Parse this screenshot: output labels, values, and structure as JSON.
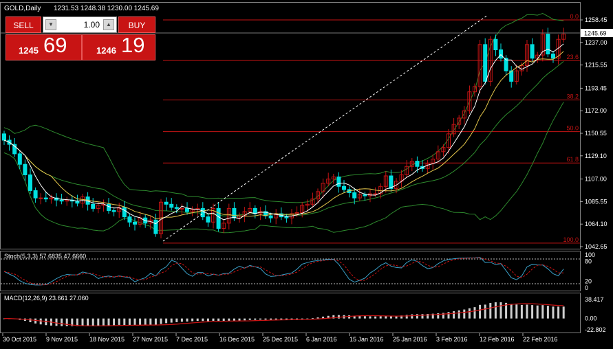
{
  "header": {
    "symbol_period": "GOLD,Daily",
    "ohlc": "1231.53 1248.38 1230.00 1245.69"
  },
  "trade_panel": {
    "sell_label": "SELL",
    "buy_label": "BUY",
    "lot_value": "1.00",
    "bid_small": "1245",
    "bid_big": "69",
    "ask_small": "1246",
    "ask_big": "19"
  },
  "price_axis": {
    "ticks": [
      "1258.45",
      "1237.00",
      "1215.55",
      "1193.45",
      "1172.00",
      "1150.55",
      "1129.10",
      "1107.00",
      "1085.55",
      "1064.10",
      "1042.65"
    ],
    "current_price": "1245.69"
  },
  "fibonacci": {
    "levels": [
      {
        "label": "0.0",
        "price": 1258.45
      },
      {
        "label": "23.6",
        "price": 1219.9
      },
      {
        "label": "38.2",
        "price": 1182.3
      },
      {
        "label": "50.0",
        "price": 1152.1
      },
      {
        "label": "61.8",
        "price": 1122.3
      },
      {
        "label": "100.0",
        "price": 1046.0
      }
    ]
  },
  "stochastic": {
    "label": "Stoch(5,3,3) 57.6835 47.6660",
    "ticks": [
      "100",
      "80",
      "20",
      "0"
    ]
  },
  "macd": {
    "label": "MACD(12,26,9) 23.661 27.060",
    "ticks": [
      "38.417",
      "0.00",
      "-22.802"
    ]
  },
  "time_axis": {
    "labels": [
      "30 Oct 2015",
      "9 Nov 2015",
      "18 Nov 2015",
      "27 Nov 2015",
      "7 Dec 2015",
      "16 Dec 2015",
      "25 Dec 2015",
      "6 Jan 2016",
      "15 Jan 2016",
      "25 Jan 2016",
      "3 Feb 2016",
      "12 Feb 2016",
      "22 Feb 2016"
    ]
  },
  "colors": {
    "bull": "#c81414",
    "bear": "#00e0e0",
    "band": "#2e8b2e",
    "fib": "#c81414",
    "signal": "#c81414",
    "fast_ma": "#ffffff",
    "slow_ma": "#e6c84c"
  },
  "chart_data": {
    "type": "candlestick",
    "price_range": [
      1042.65,
      1258.45
    ],
    "closes": [
      1144,
      1140,
      1131,
      1121,
      1111,
      1096,
      1089,
      1089,
      1088,
      1089,
      1087,
      1086,
      1087,
      1086,
      1084,
      1090,
      1083,
      1079,
      1082,
      1083,
      1077,
      1076,
      1080,
      1071,
      1066,
      1064,
      1070,
      1065,
      1068,
      1055,
      1085,
      1083,
      1080,
      1079,
      1079,
      1076,
      1078,
      1079,
      1071,
      1066,
      1079,
      1060,
      1065,
      1079,
      1070,
      1072,
      1076,
      1079,
      1074,
      1076,
      1072,
      1070,
      1074,
      1071,
      1070,
      1074,
      1075,
      1082,
      1083,
      1088,
      1095,
      1103,
      1107,
      1109,
      1100,
      1097,
      1094,
      1089,
      1092,
      1091,
      1093,
      1093,
      1100,
      1110,
      1098,
      1105,
      1111,
      1119,
      1124,
      1119,
      1117,
      1122,
      1126,
      1133,
      1137,
      1150,
      1159,
      1165,
      1172,
      1190,
      1195,
      1235,
      1200,
      1240,
      1230,
      1222,
      1210,
      1200,
      1210,
      1215,
      1235,
      1222,
      1225,
      1245,
      1226,
      1222,
      1240,
      1245
    ]
  }
}
